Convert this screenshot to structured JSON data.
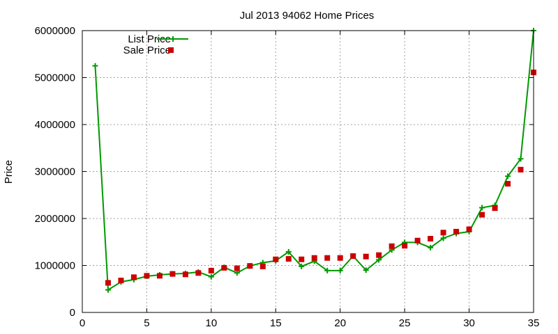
{
  "chart_data": {
    "type": "line",
    "title": "Jul 2013 94062 Home Prices",
    "xlabel": "",
    "ylabel": "Price",
    "xlim": [
      0,
      35
    ],
    "ylim": [
      0,
      6000000
    ],
    "x_ticks": [
      0,
      5,
      10,
      15,
      20,
      25,
      30,
      35
    ],
    "y_ticks": [
      0,
      1000000,
      2000000,
      3000000,
      4000000,
      5000000,
      6000000
    ],
    "grid": true,
    "legend_position": "top-left",
    "series": [
      {
        "name": "List Price",
        "style": "line with plus markers",
        "color": "#009900",
        "points": [
          [
            1,
            5250000
          ],
          [
            2,
            480000
          ],
          [
            3,
            650000
          ],
          [
            4,
            700000
          ],
          [
            5,
            770000
          ],
          [
            6,
            800000
          ],
          [
            7,
            820000
          ],
          [
            8,
            830000
          ],
          [
            9,
            860000
          ],
          [
            10,
            760000
          ],
          [
            11,
            960000
          ],
          [
            12,
            840000
          ],
          [
            13,
            990000
          ],
          [
            14,
            1060000
          ],
          [
            15,
            1100000
          ],
          [
            16,
            1290000
          ],
          [
            17,
            980000
          ],
          [
            18,
            1090000
          ],
          [
            19,
            890000
          ],
          [
            20,
            890000
          ],
          [
            21,
            1200000
          ],
          [
            22,
            900000
          ],
          [
            23,
            1120000
          ],
          [
            24,
            1330000
          ],
          [
            25,
            1490000
          ],
          [
            26,
            1490000
          ],
          [
            27,
            1380000
          ],
          [
            28,
            1580000
          ],
          [
            29,
            1680000
          ],
          [
            30,
            1720000
          ],
          [
            31,
            2230000
          ],
          [
            32,
            2280000
          ],
          [
            33,
            2900000
          ],
          [
            34,
            3270000
          ],
          [
            35,
            6000000
          ]
        ]
      },
      {
        "name": "Sale Price",
        "style": "square markers",
        "color": "#cc0000",
        "points": [
          [
            2,
            630000
          ],
          [
            3,
            680000
          ],
          [
            4,
            750000
          ],
          [
            5,
            780000
          ],
          [
            6,
            780000
          ],
          [
            7,
            820000
          ],
          [
            8,
            810000
          ],
          [
            9,
            840000
          ],
          [
            10,
            890000
          ],
          [
            11,
            950000
          ],
          [
            12,
            940000
          ],
          [
            13,
            990000
          ],
          [
            14,
            980000
          ],
          [
            15,
            1130000
          ],
          [
            16,
            1140000
          ],
          [
            17,
            1130000
          ],
          [
            18,
            1160000
          ],
          [
            19,
            1160000
          ],
          [
            20,
            1160000
          ],
          [
            21,
            1200000
          ],
          [
            22,
            1190000
          ],
          [
            23,
            1220000
          ],
          [
            24,
            1410000
          ],
          [
            25,
            1420000
          ],
          [
            26,
            1530000
          ],
          [
            27,
            1570000
          ],
          [
            28,
            1700000
          ],
          [
            29,
            1720000
          ],
          [
            30,
            1770000
          ],
          [
            31,
            2080000
          ],
          [
            32,
            2220000
          ],
          [
            33,
            2740000
          ],
          [
            34,
            3040000
          ],
          [
            35,
            5110000
          ]
        ]
      }
    ]
  }
}
